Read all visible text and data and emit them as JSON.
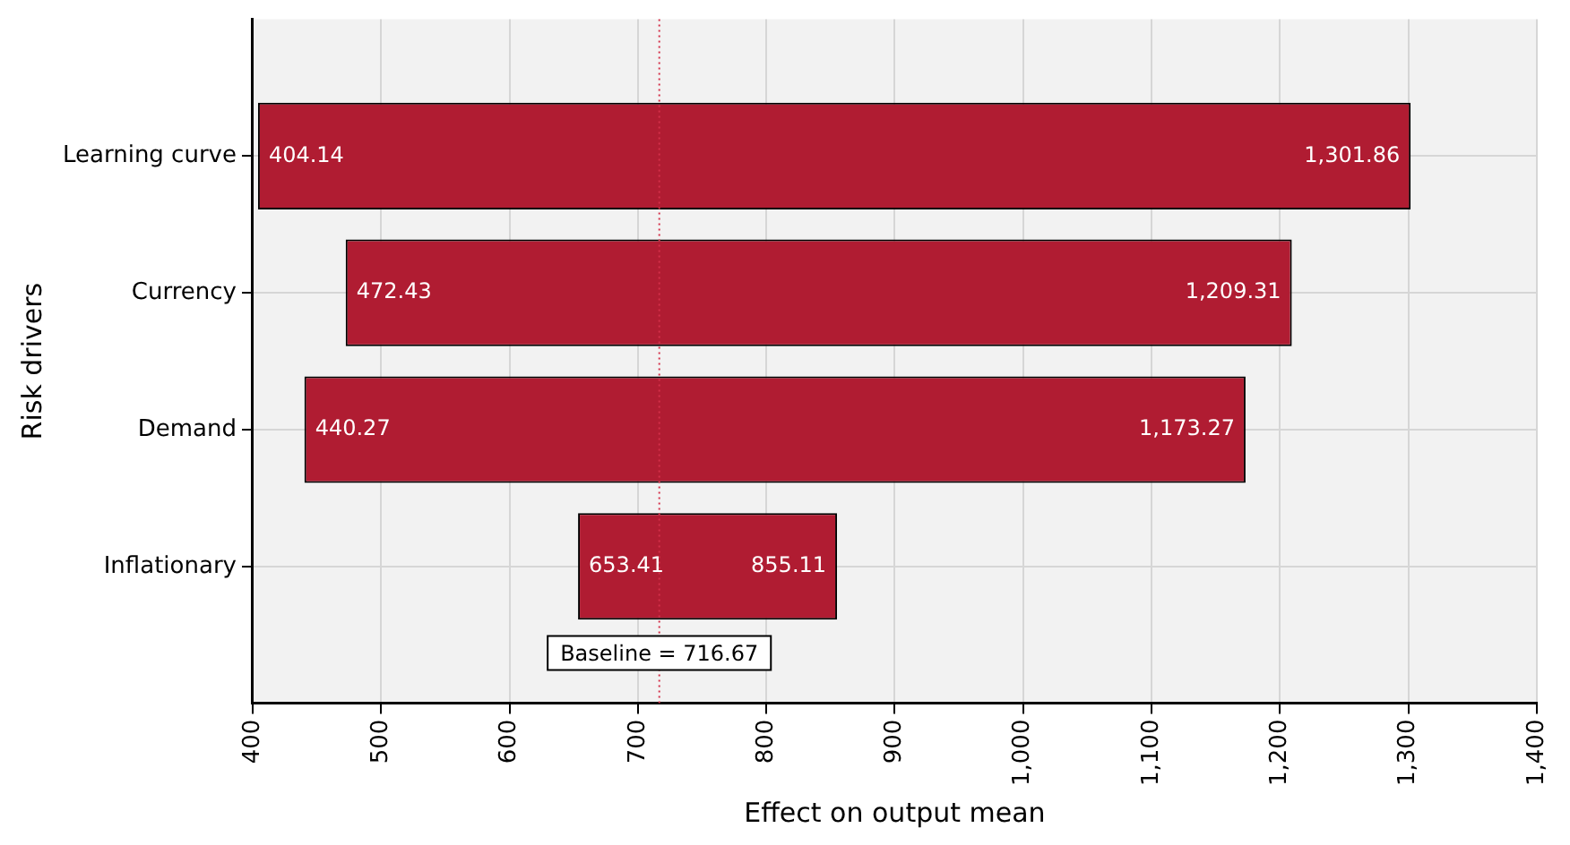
{
  "chart_data": {
    "type": "bar",
    "orientation": "horizontal",
    "xlabel": "Effect on output mean",
    "ylabel": "Risk drivers",
    "categories": [
      "Learning curve",
      "Currency",
      "Demand",
      "Inflationary"
    ],
    "base": [
      404.14,
      472.43,
      440.27,
      653.41
    ],
    "values": [
      897.72,
      736.88,
      733,
      201.7
    ],
    "color": "#b01c32",
    "xlim": [
      400,
      1400
    ],
    "xticks": [
      400,
      500,
      600,
      700,
      800,
      900,
      {
        "value": 1000,
        "label": "1,000"
      },
      {
        "value": 1100,
        "label": "1,100"
      },
      {
        "value": 1200,
        "label": "1,200"
      },
      {
        "value": 1300,
        "label": "1,300"
      },
      {
        "value": 1400,
        "label": "1,400"
      }
    ],
    "grid": true,
    "legend": false,
    "ref_lines": [
      {
        "axis": "x",
        "value": 716.67,
        "label": "Baseline = 716.67",
        "color": "#d4304a",
        "line_style": "dotted"
      }
    ],
    "annotations": [
      {
        "text": "404.14",
        "x": 404.14,
        "y": "Learning curve"
      },
      {
        "text": "1,301.86",
        "x": 1301.86,
        "y": "Learning curve"
      },
      {
        "text": "472.43",
        "x": 472.43,
        "y": "Currency"
      },
      {
        "text": "1,209.31",
        "x": 1209.31,
        "y": "Currency"
      },
      {
        "text": "440.27",
        "x": 440.27,
        "y": "Demand"
      },
      {
        "text": "1,173.27",
        "x": 1173.27,
        "y": "Demand"
      },
      {
        "text": "653.41",
        "x": 653.41,
        "y": "Inflationary"
      },
      {
        "text": "855.11",
        "x": 855.11,
        "y": "Inflationary"
      }
    ]
  }
}
